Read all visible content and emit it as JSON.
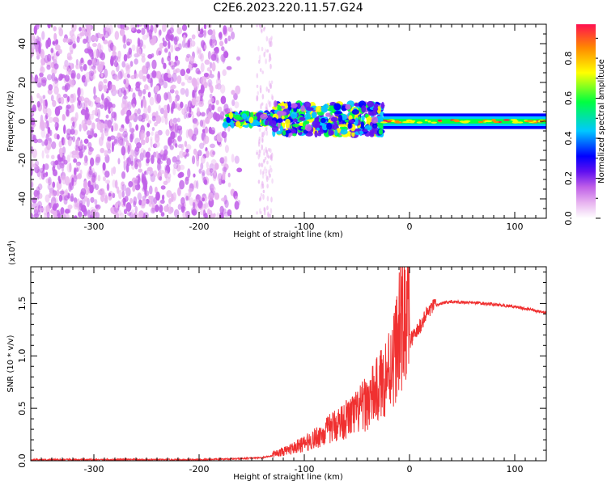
{
  "title": "C2E6.2023.220.11.57.G24",
  "chart_data": [
    {
      "type": "heatmap",
      "xlabel": "Height of straight line (km)",
      "ylabel": "Frequency (Hz)",
      "xlim": [
        -360,
        130
      ],
      "ylim": [
        -50,
        50
      ],
      "xticks": [
        -300,
        -200,
        -100,
        0,
        100
      ],
      "yticks": [
        -40,
        -20,
        0,
        20,
        40
      ],
      "colorbar": {
        "label": "Normalized spectral amplitude",
        "range": [
          0.0,
          0.97
        ],
        "ticks": [
          0.0,
          0.2,
          0.4,
          0.6,
          0.8
        ],
        "tick_labels": [
          "0.0",
          "0.2",
          "0.4",
          "0.6",
          "0.8"
        ],
        "colors": [
          "#ffffff",
          "#e8b4f0",
          "#c060e8",
          "#6010f0",
          "#0000ff",
          "#00c8ff",
          "#00ff40",
          "#ffff00",
          "#ff8800",
          "#ff1050"
        ]
      },
      "regions": [
        {
          "x": [
            -360,
            -160
          ],
          "freq": [
            -50,
            50
          ],
          "amplitude": 0.25
        },
        {
          "x": [
            -145,
            -130
          ],
          "freq": [
            -50,
            50
          ],
          "amplitude": 0.12
        },
        {
          "x": [
            -175,
            -25
          ],
          "freq": [
            -10,
            12
          ],
          "amplitude": 0.6
        },
        {
          "x": [
            -25,
            130
          ],
          "freq": [
            -2,
            3
          ],
          "amplitude": 0.85
        }
      ]
    },
    {
      "type": "line",
      "xlabel": "Height of straight line (km)",
      "ylabel": "SNR (10 * v/v)",
      "multiplier_label": "(x10",
      "multiplier_exp": "4",
      "multiplier_close": ")",
      "xlim": [
        -360,
        130
      ],
      "ylim": [
        0.0,
        1.85
      ],
      "xticks": [
        -300,
        -200,
        -100,
        0,
        100
      ],
      "yticks": [
        0.0,
        0.5,
        1.0,
        1.5
      ],
      "ytick_labels": [
        "0.0",
        "0.5",
        "1.0",
        "1.5"
      ],
      "color": "#f03030",
      "series": [
        {
          "x": [
            -360,
            -300,
            -250,
            -200,
            -160,
            -140,
            -130,
            -120,
            -110,
            -100,
            -90,
            -80,
            -70,
            -60,
            -50,
            -40,
            -30,
            -25,
            -20,
            -15,
            -12,
            -10,
            -8,
            -5,
            -2,
            0,
            5,
            10,
            15,
            20,
            25,
            30,
            40,
            50,
            60,
            70,
            80,
            90,
            100,
            110,
            120,
            130
          ],
          "y": [
            0.01,
            0.01,
            0.01,
            0.01,
            0.02,
            0.03,
            0.05,
            0.07,
            0.1,
            0.13,
            0.17,
            0.22,
            0.28,
            0.32,
            0.37,
            0.45,
            0.55,
            0.62,
            0.7,
            0.8,
            0.9,
            0.98,
            1.02,
            1.06,
            1.1,
            1.14,
            1.2,
            1.28,
            1.38,
            1.45,
            1.48,
            1.5,
            1.52,
            1.51,
            1.51,
            1.5,
            1.49,
            1.48,
            1.47,
            1.45,
            1.43,
            1.41
          ]
        }
      ]
    }
  ]
}
